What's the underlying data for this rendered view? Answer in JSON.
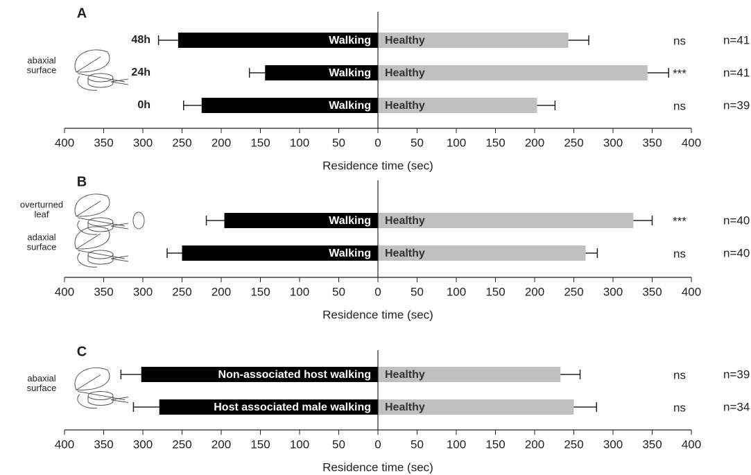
{
  "chart_data": [
    {
      "type": "bar",
      "orientation": "horizontal",
      "panel_label": "A",
      "categories": [
        "48h",
        "24h",
        "0h"
      ],
      "series": [
        {
          "color": "#000000",
          "label_color": "#ffffff",
          "values": [
            -255,
            -144,
            -225
          ],
          "errors": [
            25,
            20,
            23
          ],
          "bar_labels": [
            "Walking",
            "Walking",
            "Walking"
          ]
        },
        {
          "color": "#c0c0c0",
          "label_color": "#333333",
          "values": [
            243,
            344,
            203
          ],
          "errors": [
            26,
            27,
            23
          ],
          "bar_labels": [
            "Healthy",
            "Healthy",
            "Healthy"
          ]
        }
      ],
      "significance": [
        "ns",
        "***",
        "ns"
      ],
      "n_labels": [
        "n=41",
        "n=41",
        "n=39"
      ],
      "icon_labels": [
        [
          "abaxial",
          "surface"
        ]
      ],
      "xlabel": "Residence time (sec)",
      "xlim": [
        -400,
        400
      ],
      "xticks": [
        {
          "value": -400,
          "label": "400"
        },
        {
          "value": -350,
          "label": "350"
        },
        {
          "value": -300,
          "label": "300"
        },
        {
          "value": -250,
          "label": "250"
        },
        {
          "value": -200,
          "label": "200"
        },
        {
          "value": -150,
          "label": "150"
        },
        {
          "value": -100,
          "label": "100"
        },
        {
          "value": -50,
          "label": "50"
        },
        0,
        50,
        100,
        150,
        200,
        250,
        300,
        350,
        400
      ]
    },
    {
      "type": "bar",
      "orientation": "horizontal",
      "panel_label": "B",
      "categories": [
        null,
        null
      ],
      "series": [
        {
          "color": "#000000",
          "label_color": "#ffffff",
          "values": [
            -196,
            -250
          ],
          "errors": [
            23,
            19
          ],
          "bar_labels": [
            "Walking",
            "Walking"
          ]
        },
        {
          "color": "#c0c0c0",
          "label_color": "#333333",
          "values": [
            326,
            265
          ],
          "errors": [
            24,
            15
          ],
          "bar_labels": [
            "Healthy",
            "Healthy"
          ]
        }
      ],
      "significance": [
        "***",
        "ns"
      ],
      "n_labels": [
        "n=40",
        "n=40"
      ],
      "icon_labels": [
        [
          "overturned",
          "leaf"
        ],
        [
          "adaxial",
          "surface"
        ]
      ],
      "xlabel": "Residence time (sec)",
      "xlim": [
        -400,
        400
      ],
      "xticks": [
        {
          "value": -400,
          "label": "400"
        },
        {
          "value": -350,
          "label": "350"
        },
        {
          "value": -300,
          "label": "300"
        },
        {
          "value": -250,
          "label": "250"
        },
        {
          "value": -200,
          "label": "200"
        },
        {
          "value": -150,
          "label": "150"
        },
        {
          "value": -100,
          "label": "100"
        },
        {
          "value": -50,
          "label": "50"
        },
        0,
        50,
        100,
        150,
        200,
        250,
        300,
        350,
        400
      ]
    },
    {
      "type": "bar",
      "orientation": "horizontal",
      "panel_label": "C",
      "categories": [
        null,
        null
      ],
      "series": [
        {
          "color": "#000000",
          "label_color": "#ffffff",
          "values": [
            -302,
            -279
          ],
          "errors": [
            26,
            33
          ],
          "bar_labels": [
            "Non-associated host walking",
            "Host associated male walking"
          ]
        },
        {
          "color": "#c0c0c0",
          "label_color": "#333333",
          "values": [
            233,
            250
          ],
          "errors": [
            25,
            29
          ],
          "bar_labels": [
            "Healthy",
            "Healthy"
          ]
        }
      ],
      "significance": [
        "ns",
        "ns"
      ],
      "n_labels": [
        "n=39",
        "n=34"
      ],
      "icon_labels": [
        [
          "abaxial",
          "surface"
        ]
      ],
      "xlabel": "Residence time (sec)",
      "xlim": [
        -400,
        400
      ],
      "xticks": [
        {
          "value": -400,
          "label": "400"
        },
        {
          "value": -350,
          "label": "350"
        },
        {
          "value": -300,
          "label": "300"
        },
        {
          "value": -250,
          "label": "250"
        },
        {
          "value": -200,
          "label": "200"
        },
        {
          "value": -150,
          "label": "150"
        },
        {
          "value": -100,
          "label": "100"
        },
        {
          "value": -50,
          "label": "50"
        },
        0,
        50,
        100,
        150,
        200,
        250,
        300,
        350,
        400
      ]
    }
  ]
}
